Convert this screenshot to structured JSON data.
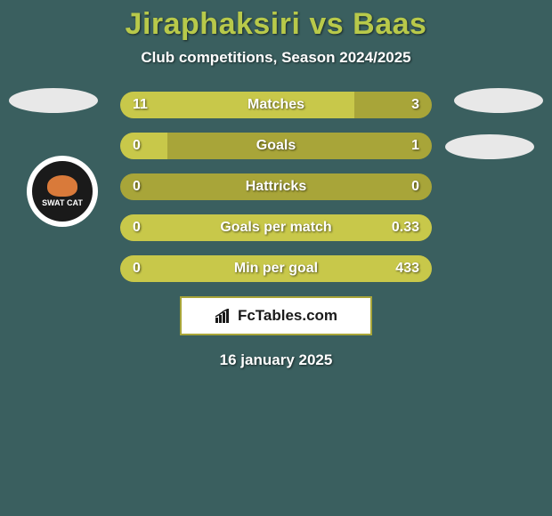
{
  "background_color": "#3a5f5f",
  "title": {
    "text": "Jiraphaksiri vs Baas",
    "color": "#b8c94a",
    "fontsize": 34
  },
  "subtitle": {
    "text": "Club competitions, Season 2024/2025",
    "color": "#ffffff",
    "fontsize": 17
  },
  "side_ellipse_color": "#e8e8e8",
  "badge": {
    "outer_color": "#ffffff",
    "inner_color": "#1a1a1a",
    "cat_color": "#d97a3a",
    "text": "SWAT CAT",
    "text_color": "#ffffff"
  },
  "bars": {
    "track_color": "#a8a539",
    "fill_color": "#c8c84a",
    "value_color": "#ffffff",
    "label_color": "#ffffff",
    "height": 30,
    "fontsize": 16,
    "rows": [
      {
        "label": "Matches",
        "left": "11",
        "right": "3",
        "left_pct": 75,
        "right_pct": 25
      },
      {
        "label": "Goals",
        "left": "0",
        "right": "1",
        "left_pct": 15,
        "right_pct": 85
      },
      {
        "label": "Hattricks",
        "left": "0",
        "right": "0",
        "left_pct": 0,
        "right_pct": 0
      },
      {
        "label": "Goals per match",
        "left": "0",
        "right": "0.33",
        "left_pct": 0,
        "right_pct": 100
      },
      {
        "label": "Min per goal",
        "left": "0",
        "right": "433",
        "left_pct": 0,
        "right_pct": 100
      }
    ]
  },
  "brand": {
    "text": "FcTables.com",
    "bg_color": "#ffffff",
    "border_color": "#a8a539",
    "text_color": "#1a1a1a",
    "icon_color": "#1a1a1a"
  },
  "date": {
    "text": "16 january 2025",
    "color": "#ffffff",
    "fontsize": 17
  }
}
